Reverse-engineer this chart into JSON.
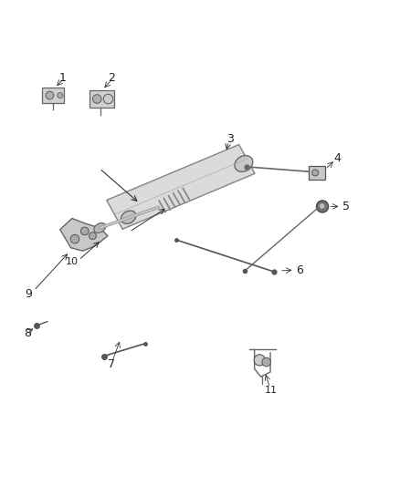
{
  "bg_color": "#ffffff",
  "fig_width": 4.38,
  "fig_height": 5.33,
  "dpi": 100,
  "line_color": "#333333",
  "label_color": "#222222",
  "label_fontsize": 9,
  "part_color": "#666666",
  "fill_light": "#d0d0d0",
  "fill_mid": "#b0b0b0",
  "fill_dark": "#888888"
}
